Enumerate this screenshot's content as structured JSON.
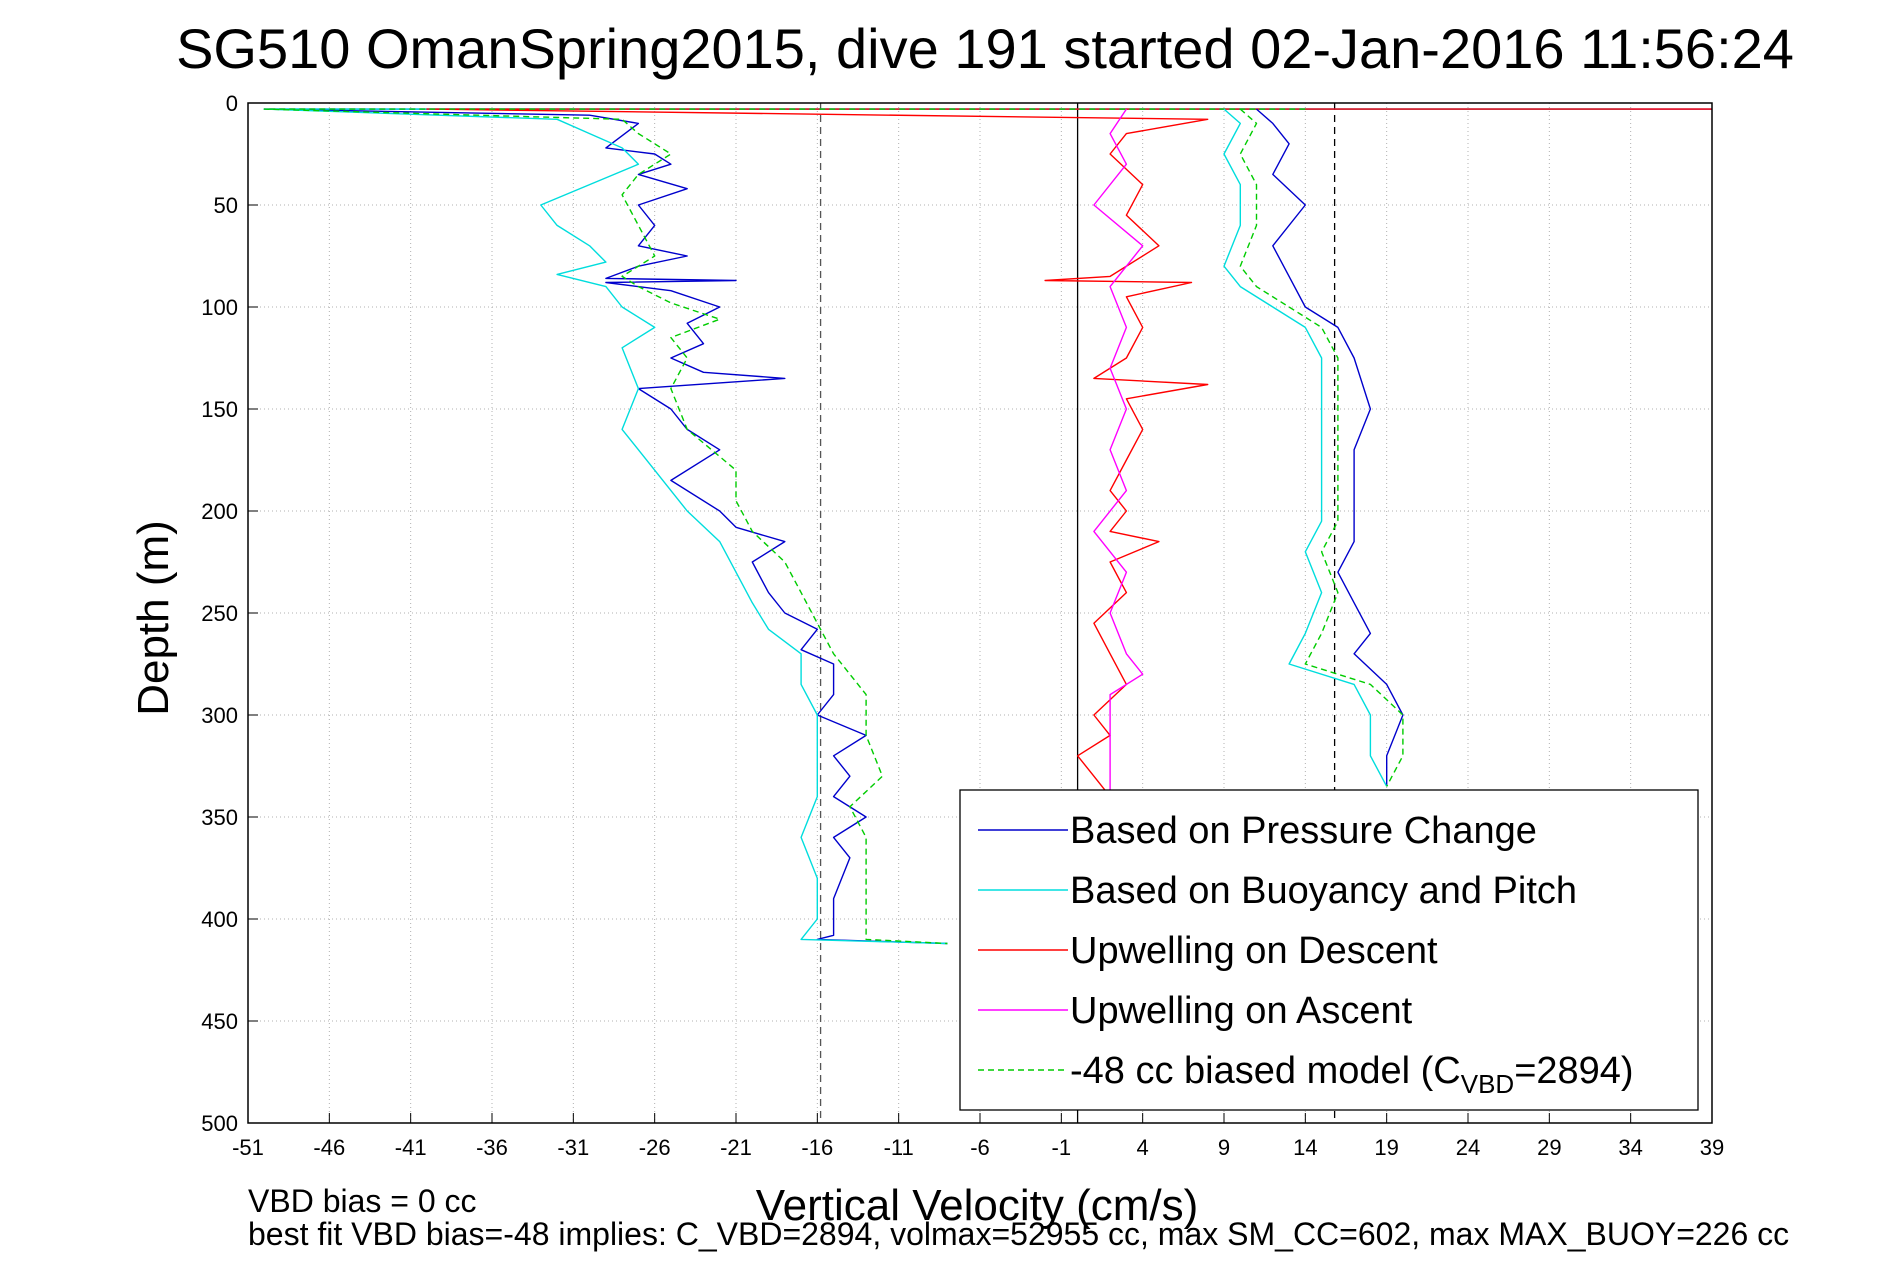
{
  "chart_data": {
    "type": "line",
    "title": "SG510 OmanSpring2015, dive 191 started 02-Jan-2016 11:56:24",
    "xlabel": "Vertical Velocity (cm/s)",
    "ylabel": "Depth (m)",
    "xlim": [
      -51,
      39
    ],
    "ylim": [
      0,
      500
    ],
    "y_reversed": true,
    "x_ticks": [
      -51,
      -46,
      -41,
      -36,
      -31,
      -26,
      -21,
      -16,
      -11,
      -6,
      -1,
      4,
      9,
      14,
      19,
      24,
      29,
      34,
      39
    ],
    "y_ticks": [
      0,
      50,
      100,
      150,
      200,
      250,
      300,
      350,
      400,
      450,
      500
    ],
    "grid": true,
    "legend_position": "bottom-right",
    "reference_lines": [
      {
        "x": -15.8,
        "style": "dashed",
        "color": "#555555"
      },
      {
        "x": 0,
        "style": "solid",
        "color": "#000000"
      },
      {
        "x": 15.8,
        "style": "dashed",
        "color": "#000000"
      }
    ],
    "series": [
      {
        "name": "Based on Pressure Change",
        "color": "#0000cc",
        "dash": "",
        "points": [
          [
            39,
            3
          ],
          [
            -50,
            3
          ],
          [
            -30,
            6
          ],
          [
            -27,
            10
          ],
          [
            -29,
            22
          ],
          [
            -26,
            25
          ],
          [
            -25,
            30
          ],
          [
            -27,
            35
          ],
          [
            -24,
            42
          ],
          [
            -27,
            50
          ],
          [
            -26,
            60
          ],
          [
            -27,
            70
          ],
          [
            -24,
            75
          ],
          [
            -27,
            80
          ],
          [
            -29,
            86
          ],
          [
            -21,
            87
          ],
          [
            -29,
            88
          ],
          [
            -25,
            92
          ],
          [
            -22,
            100
          ],
          [
            -24,
            108
          ],
          [
            -23,
            118
          ],
          [
            -25,
            125
          ],
          [
            -23,
            132
          ],
          [
            -18,
            135
          ],
          [
            -27,
            140
          ],
          [
            -25,
            150
          ],
          [
            -24,
            160
          ],
          [
            -22,
            170
          ],
          [
            -25,
            185
          ],
          [
            -22,
            200
          ],
          [
            -21,
            208
          ],
          [
            -18,
            215
          ],
          [
            -20,
            225
          ],
          [
            -19,
            240
          ],
          [
            -18,
            250
          ],
          [
            -16,
            258
          ],
          [
            -17,
            268
          ],
          [
            -15,
            275
          ],
          [
            -15,
            290
          ],
          [
            -16,
            300
          ],
          [
            -13,
            310
          ],
          [
            -15,
            320
          ],
          [
            -14,
            330
          ],
          [
            -15,
            340
          ],
          [
            -13,
            350
          ],
          [
            -15,
            360
          ],
          [
            -14,
            370
          ],
          [
            -15,
            390
          ],
          [
            -15,
            408
          ],
          [
            -16,
            410
          ],
          [
            -8,
            412
          ]
        ]
      },
      {
        "name": "Based on Buoyancy and Pitch",
        "color": "#00dddd",
        "dash": "",
        "points": [
          [
            34,
            3
          ],
          [
            -50,
            3
          ],
          [
            -32,
            8
          ],
          [
            -30,
            15
          ],
          [
            -28,
            22
          ],
          [
            -27,
            30
          ],
          [
            -30,
            40
          ],
          [
            -33,
            50
          ],
          [
            -32,
            60
          ],
          [
            -30,
            70
          ],
          [
            -29,
            78
          ],
          [
            -32,
            84
          ],
          [
            -29,
            90
          ],
          [
            -28,
            100
          ],
          [
            -26,
            110
          ],
          [
            -28,
            120
          ],
          [
            -27,
            140
          ],
          [
            -28,
            160
          ],
          [
            -26,
            180
          ],
          [
            -24,
            200
          ],
          [
            -22,
            215
          ],
          [
            -21,
            230
          ],
          [
            -20,
            245
          ],
          [
            -19,
            258
          ],
          [
            -17,
            270
          ],
          [
            -17,
            285
          ],
          [
            -16,
            300
          ],
          [
            -16,
            320
          ],
          [
            -16,
            340
          ],
          [
            -17,
            360
          ],
          [
            -16,
            380
          ],
          [
            -16,
            400
          ],
          [
            -17,
            410
          ],
          [
            -8,
            412
          ]
        ]
      },
      {
        "name": "Upwelling on Descent",
        "color": "#ff0000",
        "dash": "",
        "points": [
          [
            39,
            3
          ],
          [
            -40,
            3
          ],
          [
            8,
            8
          ],
          [
            3,
            15
          ],
          [
            2,
            25
          ],
          [
            4,
            40
          ],
          [
            3,
            55
          ],
          [
            5,
            70
          ],
          [
            2,
            85
          ],
          [
            -2,
            87
          ],
          [
            7,
            88
          ],
          [
            3,
            95
          ],
          [
            4,
            110
          ],
          [
            3,
            125
          ],
          [
            1,
            135
          ],
          [
            8,
            138
          ],
          [
            3,
            145
          ],
          [
            4,
            160
          ],
          [
            3,
            175
          ],
          [
            2,
            190
          ],
          [
            3,
            200
          ],
          [
            2,
            210
          ],
          [
            5,
            215
          ],
          [
            2,
            225
          ],
          [
            3,
            240
          ],
          [
            1,
            255
          ],
          [
            2,
            270
          ],
          [
            3,
            285
          ],
          [
            1,
            300
          ],
          [
            2,
            310
          ],
          [
            0,
            320
          ],
          [
            1,
            330
          ],
          [
            2,
            340
          ]
        ]
      },
      {
        "name": "Upwelling on Ascent",
        "color": "#ff00ff",
        "dash": "",
        "points": [
          [
            3,
            3
          ],
          [
            2,
            15
          ],
          [
            3,
            30
          ],
          [
            1,
            50
          ],
          [
            4,
            70
          ],
          [
            2,
            90
          ],
          [
            3,
            110
          ],
          [
            2,
            130
          ],
          [
            3,
            150
          ],
          [
            2,
            170
          ],
          [
            3,
            190
          ],
          [
            1,
            210
          ],
          [
            3,
            230
          ],
          [
            2,
            250
          ],
          [
            3,
            270
          ],
          [
            4,
            280
          ],
          [
            2,
            290
          ],
          [
            2,
            320
          ],
          [
            2,
            340
          ]
        ]
      },
      {
        "name": "-48 cc biased model (C<sub>VBD</sub>=2894)",
        "color": "#00cc00",
        "dash": "6,4",
        "points": [
          [
            14,
            3
          ],
          [
            -50,
            3
          ],
          [
            -28,
            8
          ],
          [
            -27,
            15
          ],
          [
            -25,
            25
          ],
          [
            -27,
            35
          ],
          [
            -28,
            45
          ],
          [
            -27,
            60
          ],
          [
            -26,
            75
          ],
          [
            -28,
            85
          ],
          [
            -27,
            90
          ],
          [
            -25,
            98
          ],
          [
            -22,
            106
          ],
          [
            -25,
            115
          ],
          [
            -24,
            125
          ],
          [
            -25,
            140
          ],
          [
            -24,
            160
          ],
          [
            -21,
            180
          ],
          [
            -21,
            195
          ],
          [
            -20,
            210
          ],
          [
            -18,
            225
          ],
          [
            -17,
            240
          ],
          [
            -16,
            255
          ],
          [
            -15,
            270
          ],
          [
            -13,
            290
          ],
          [
            -13,
            310
          ],
          [
            -12,
            330
          ],
          [
            -14,
            345
          ],
          [
            -13,
            360
          ],
          [
            -13,
            380
          ],
          [
            -13,
            400
          ],
          [
            -13,
            410
          ],
          [
            -8,
            412
          ]
        ]
      },
      {
        "name": "",
        "color": "#0000cc",
        "dash": "",
        "points": [
          [
            11,
            3
          ],
          [
            12,
            10
          ],
          [
            13,
            20
          ],
          [
            12,
            35
          ],
          [
            14,
            50
          ],
          [
            12,
            70
          ],
          [
            13,
            85
          ],
          [
            14,
            100
          ],
          [
            16,
            110
          ],
          [
            17,
            125
          ],
          [
            18,
            150
          ],
          [
            17,
            170
          ],
          [
            17,
            185
          ],
          [
            17,
            200
          ],
          [
            17,
            215
          ],
          [
            16,
            230
          ],
          [
            17,
            245
          ],
          [
            18,
            260
          ],
          [
            17,
            270
          ],
          [
            19,
            285
          ],
          [
            20,
            300
          ],
          [
            19,
            320
          ],
          [
            19,
            335
          ]
        ]
      },
      {
        "name": "",
        "color": "#00dddd",
        "dash": "",
        "points": [
          [
            9,
            3
          ],
          [
            10,
            10
          ],
          [
            9,
            25
          ],
          [
            10,
            40
          ],
          [
            10,
            60
          ],
          [
            9,
            80
          ],
          [
            10,
            90
          ],
          [
            12,
            100
          ],
          [
            14,
            110
          ],
          [
            15,
            125
          ],
          [
            15,
            150
          ],
          [
            15,
            170
          ],
          [
            15,
            190
          ],
          [
            15,
            205
          ],
          [
            14,
            220
          ],
          [
            15,
            240
          ],
          [
            14,
            260
          ],
          [
            13,
            275
          ],
          [
            17,
            285
          ],
          [
            18,
            300
          ],
          [
            18,
            320
          ],
          [
            19,
            335
          ]
        ]
      },
      {
        "name": "",
        "color": "#00cc00",
        "dash": "6,4",
        "points": [
          [
            10,
            3
          ],
          [
            11,
            10
          ],
          [
            10,
            25
          ],
          [
            11,
            40
          ],
          [
            11,
            60
          ],
          [
            10,
            80
          ],
          [
            11,
            90
          ],
          [
            13,
            100
          ],
          [
            15,
            110
          ],
          [
            16,
            125
          ],
          [
            16,
            150
          ],
          [
            16,
            170
          ],
          [
            16,
            190
          ],
          [
            16,
            205
          ],
          [
            15,
            220
          ],
          [
            16,
            240
          ],
          [
            15,
            260
          ],
          [
            14,
            275
          ],
          [
            18,
            285
          ],
          [
            20,
            300
          ],
          [
            20,
            320
          ],
          [
            19,
            335
          ]
        ]
      }
    ]
  },
  "footer": {
    "line1": "VBD bias = 0 cc",
    "line2": "best fit VBD bias=-48 implies: C_VBD=2894, volmax=52955 cc, max SM_CC=602, max MAX_BUOY=226 cc"
  }
}
